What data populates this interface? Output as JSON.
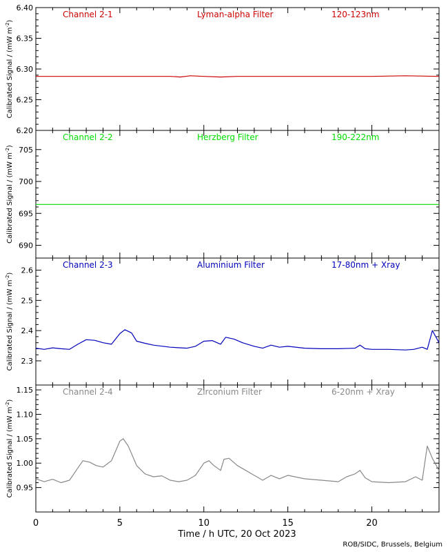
{
  "chart_data": [
    {
      "type": "line",
      "channel": "Channel 2-1",
      "filter": "Lyman-alpha Filter",
      "band": "120-123nm",
      "color": "#cc0000",
      "ylabel": "Calibrated Signal / (mW m",
      "ylabel_sup": "-2",
      "ylabel_end": ")",
      "ylim": [
        6.2,
        6.4
      ],
      "yticks": [
        "6.20",
        "6.25",
        "6.30",
        "6.35",
        "6.40"
      ],
      "x": [
        0,
        2,
        4,
        6,
        8,
        8.6,
        9.2,
        10,
        11,
        12,
        14,
        16,
        18,
        20,
        22,
        24
      ],
      "values": [
        6.288,
        6.288,
        6.288,
        6.288,
        6.288,
        6.287,
        6.289,
        6.288,
        6.287,
        6.288,
        6.288,
        6.288,
        6.288,
        6.288,
        6.289,
        6.288
      ]
    },
    {
      "type": "line",
      "channel": "Channel 2-2",
      "filter": "Herzberg Filter",
      "band": "190-222nm",
      "color": "#00dd00",
      "ylabel": "Calibrated Signal / (mW m",
      "ylabel_sup": "-2",
      "ylabel_end": ")",
      "ylim": [
        688,
        708
      ],
      "yticks": [
        "690",
        "695",
        "700",
        "705"
      ],
      "x": [
        0,
        4,
        8,
        12,
        16,
        20,
        24
      ],
      "values": [
        696.4,
        696.4,
        696.4,
        696.4,
        696.4,
        696.4,
        696.4
      ]
    },
    {
      "type": "line",
      "channel": "Channel 2-3",
      "filter": "Aluminium Filter",
      "band": "17-80nm + Xray",
      "color": "#0000bb",
      "ylabel": "Calibrated Signal / (mW m",
      "ylabel_sup": "-2",
      "ylabel_end": ")",
      "ylim": [
        2.22,
        2.64
      ],
      "yticks": [
        "2.3",
        "2.4",
        "2.5",
        "2.6"
      ],
      "x": [
        0,
        0.5,
        1,
        1.5,
        2,
        2.5,
        3,
        3.5,
        4,
        4.5,
        5,
        5.3,
        5.7,
        6,
        6.5,
        7,
        8,
        9,
        9.5,
        10,
        10.5,
        11,
        11.3,
        11.8,
        12.3,
        13,
        13.5,
        14,
        14.5,
        15,
        16,
        17,
        18,
        19,
        19.3,
        19.6,
        20,
        21,
        22,
        22.5,
        23,
        23.3,
        23.6,
        24
      ],
      "values": [
        2.342,
        2.338,
        2.343,
        2.34,
        2.338,
        2.355,
        2.37,
        2.368,
        2.36,
        2.355,
        2.39,
        2.403,
        2.392,
        2.365,
        2.358,
        2.352,
        2.345,
        2.342,
        2.348,
        2.365,
        2.367,
        2.355,
        2.378,
        2.372,
        2.36,
        2.348,
        2.342,
        2.352,
        2.345,
        2.348,
        2.342,
        2.34,
        2.34,
        2.342,
        2.352,
        2.34,
        2.338,
        2.338,
        2.336,
        2.338,
        2.345,
        2.338,
        2.4,
        2.36
      ]
    },
    {
      "type": "line",
      "channel": "Channel 2-4",
      "filter": "Zirconium Filter",
      "band": "6-20nm + Xray",
      "color": "#888888",
      "ylabel": "Calibrated Signal / (mW m",
      "ylabel_sup": "-2",
      "ylabel_end": ")",
      "ylim": [
        0.9,
        1.16
      ],
      "yticks": [
        "0.95",
        "1.00",
        "1.05",
        "1.10",
        "1.15"
      ],
      "x": [
        0,
        0.5,
        1,
        1.5,
        2,
        2.5,
        2.8,
        3.2,
        3.6,
        4,
        4.5,
        5,
        5.2,
        5.5,
        6,
        6.5,
        7,
        7.5,
        8,
        8.5,
        9,
        9.5,
        10,
        10.3,
        10.6,
        11,
        11.2,
        11.5,
        12,
        12.5,
        13,
        13.5,
        14,
        14.5,
        15,
        16,
        17,
        18,
        18.5,
        19,
        19.3,
        19.6,
        20,
        21,
        22,
        22.6,
        23,
        23.3,
        23.6,
        24
      ],
      "values": [
        0.968,
        0.962,
        0.967,
        0.96,
        0.965,
        0.99,
        1.005,
        1.002,
        0.995,
        0.992,
        1.005,
        1.045,
        1.05,
        1.035,
        0.995,
        0.978,
        0.972,
        0.974,
        0.965,
        0.962,
        0.965,
        0.975,
        1.0,
        1.005,
        0.995,
        0.985,
        1.008,
        1.01,
        0.995,
        0.985,
        0.975,
        0.965,
        0.975,
        0.968,
        0.975,
        0.968,
        0.965,
        0.962,
        0.972,
        0.978,
        0.985,
        0.97,
        0.962,
        0.96,
        0.962,
        0.972,
        0.965,
        1.035,
        1.01,
        0.985
      ]
    }
  ],
  "xaxis": {
    "label": "Time / h UTC, 20 Oct 2023",
    "xlim": [
      0,
      24
    ],
    "ticks": [
      {
        "value": 0,
        "label": "0"
      },
      {
        "value": 5,
        "label": "5"
      },
      {
        "value": 10,
        "label": "10"
      },
      {
        "value": 15,
        "label": "15"
      },
      {
        "value": 20,
        "label": "20"
      }
    ]
  },
  "credit": "ROB/SIDC, Brussels, Belgium"
}
